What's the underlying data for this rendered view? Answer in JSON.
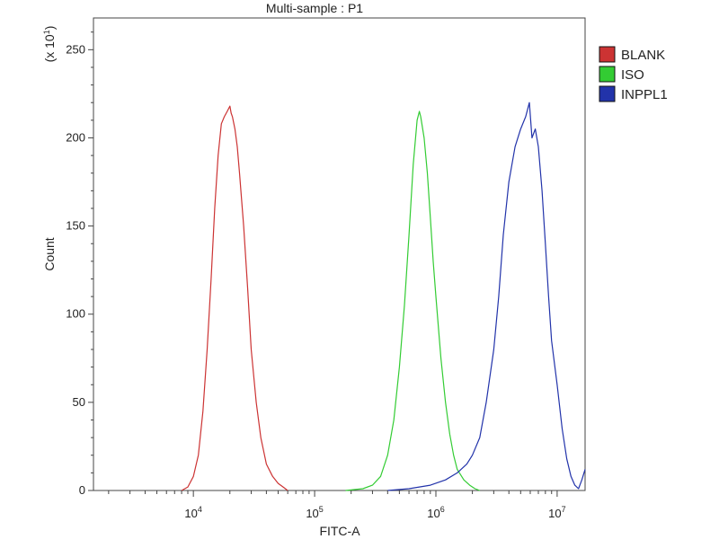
{
  "chart_data": {
    "type": "line",
    "title": "Multi-sample : P1",
    "xlabel": "FITC-A",
    "ylabel": "Count",
    "y_multiplier_label": "(x 10",
    "y_multiplier_exp": "1",
    "y_multiplier_close": ")",
    "x_scale": "log",
    "xlim": [
      1500,
      17000000
    ],
    "ylim": [
      0,
      268
    ],
    "grid": false,
    "legend_position": "top-right",
    "x_tick_labels": [
      {
        "value": 10000,
        "base": "10",
        "exp": "4"
      },
      {
        "value": 100000,
        "base": "10",
        "exp": "5"
      },
      {
        "value": 1000000,
        "base": "10",
        "exp": "6"
      },
      {
        "value": 10000000,
        "base": "10",
        "exp": "7"
      }
    ],
    "y_ticks": [
      0,
      50,
      100,
      150,
      200,
      250
    ],
    "y_tick_labels": [
      "0",
      "50",
      "100",
      "150",
      "200",
      "250"
    ],
    "series": [
      {
        "name": "BLANK",
        "color": "#cc3333",
        "points": [
          [
            8000,
            0
          ],
          [
            9000,
            2
          ],
          [
            10000,
            8
          ],
          [
            11000,
            20
          ],
          [
            12000,
            45
          ],
          [
            13000,
            80
          ],
          [
            14000,
            120
          ],
          [
            15000,
            160
          ],
          [
            16000,
            190
          ],
          [
            17000,
            208
          ],
          [
            18000,
            212
          ],
          [
            19000,
            215
          ],
          [
            20000,
            218
          ],
          [
            20500,
            214
          ],
          [
            21000,
            212
          ],
          [
            22000,
            205
          ],
          [
            23000,
            195
          ],
          [
            24000,
            180
          ],
          [
            25000,
            165
          ],
          [
            26000,
            150
          ],
          [
            28000,
            115
          ],
          [
            30000,
            80
          ],
          [
            33000,
            50
          ],
          [
            36000,
            30
          ],
          [
            40000,
            15
          ],
          [
            45000,
            8
          ],
          [
            50000,
            4
          ],
          [
            55000,
            2
          ],
          [
            60000,
            0
          ]
        ]
      },
      {
        "name": "ISO",
        "color": "#33cc33",
        "points": [
          [
            180000,
            0
          ],
          [
            250000,
            1
          ],
          [
            300000,
            3
          ],
          [
            350000,
            8
          ],
          [
            400000,
            20
          ],
          [
            450000,
            40
          ],
          [
            500000,
            70
          ],
          [
            550000,
            105
          ],
          [
            600000,
            145
          ],
          [
            650000,
            185
          ],
          [
            700000,
            210
          ],
          [
            730000,
            215
          ],
          [
            750000,
            212
          ],
          [
            800000,
            200
          ],
          [
            850000,
            180
          ],
          [
            900000,
            155
          ],
          [
            950000,
            130
          ],
          [
            1000000,
            110
          ],
          [
            1100000,
            75
          ],
          [
            1200000,
            50
          ],
          [
            1300000,
            32
          ],
          [
            1400000,
            20
          ],
          [
            1500000,
            12
          ],
          [
            1700000,
            6
          ],
          [
            1900000,
            3
          ],
          [
            2100000,
            1
          ],
          [
            2300000,
            0
          ]
        ]
      },
      {
        "name": "INPPL1",
        "color": "#2233aa",
        "points": [
          [
            400000,
            0
          ],
          [
            600000,
            1
          ],
          [
            900000,
            3
          ],
          [
            1200000,
            6
          ],
          [
            1500000,
            10
          ],
          [
            1800000,
            15
          ],
          [
            2000000,
            20
          ],
          [
            2300000,
            30
          ],
          [
            2600000,
            50
          ],
          [
            3000000,
            80
          ],
          [
            3300000,
            110
          ],
          [
            3600000,
            145
          ],
          [
            4000000,
            175
          ],
          [
            4500000,
            195
          ],
          [
            5000000,
            205
          ],
          [
            5500000,
            212
          ],
          [
            5900000,
            220
          ],
          [
            6200000,
            200
          ],
          [
            6600000,
            205
          ],
          [
            7000000,
            195
          ],
          [
            7500000,
            170
          ],
          [
            8000000,
            140
          ],
          [
            8500000,
            110
          ],
          [
            9000000,
            85
          ],
          [
            10000000,
            60
          ],
          [
            11000000,
            35
          ],
          [
            12000000,
            18
          ],
          [
            13000000,
            8
          ],
          [
            14000000,
            3
          ],
          [
            15000000,
            1
          ],
          [
            16000000,
            6
          ],
          [
            17000000,
            12
          ]
        ]
      }
    ]
  }
}
